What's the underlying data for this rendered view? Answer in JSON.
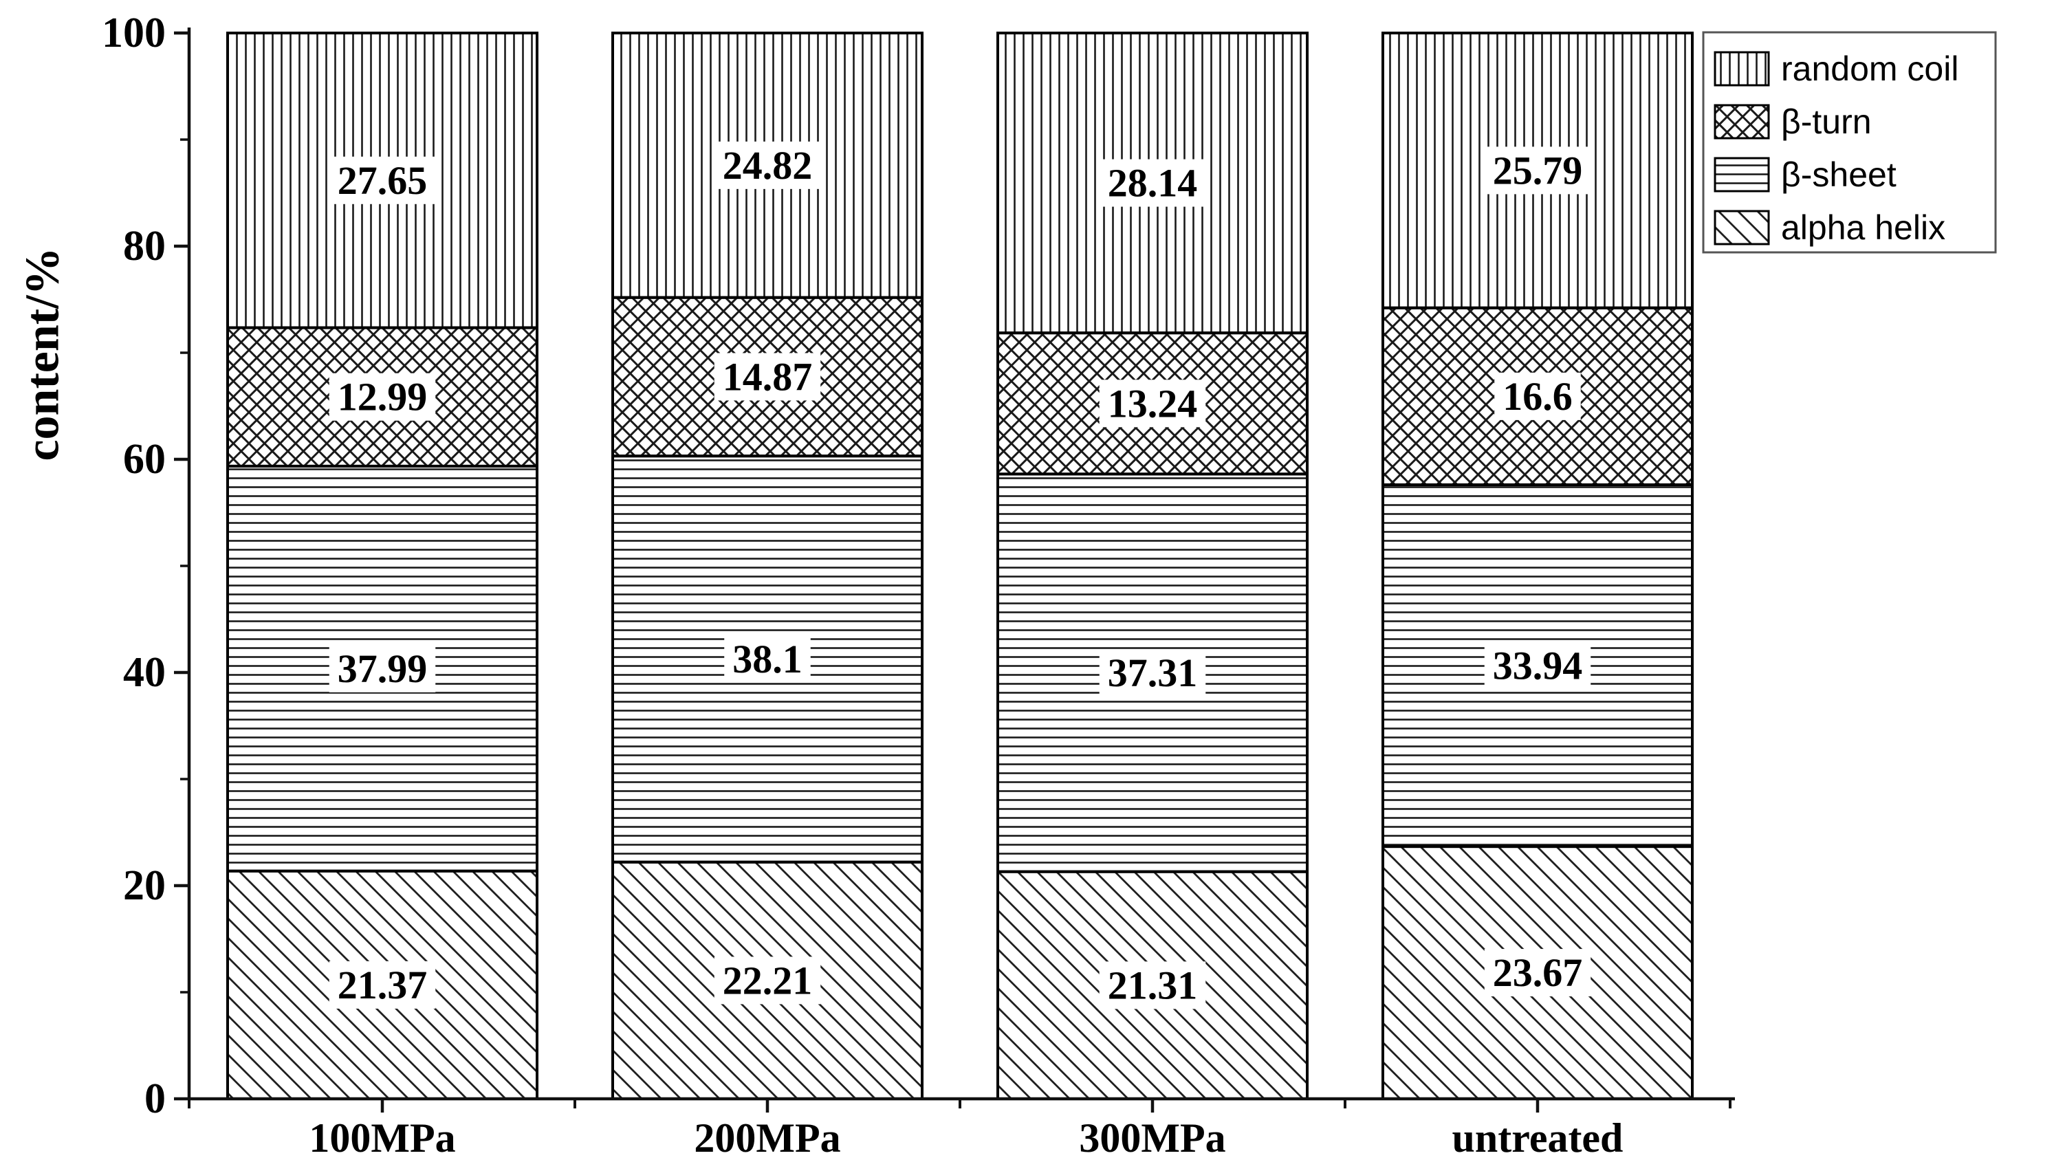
{
  "chart_data": {
    "type": "bar",
    "stacked": true,
    "title": "",
    "xlabel": "",
    "ylabel": "content/%",
    "ylim": [
      0,
      100
    ],
    "yticks": [
      "0",
      "20",
      "40",
      "60",
      "80",
      "100"
    ],
    "yticks_minor": [
      10,
      30,
      50,
      70,
      90
    ],
    "grid": false,
    "legend_position": "top-right",
    "categories": [
      "100MPa",
      "200MPa",
      "300MPa",
      "untreated"
    ],
    "series": [
      {
        "name": "alpha helix",
        "pattern": "diagonal",
        "values": [
          21.37,
          22.21,
          21.31,
          23.67
        ]
      },
      {
        "name": "β-sheet",
        "pattern": "horizontal",
        "values": [
          37.99,
          38.1,
          37.31,
          33.94
        ]
      },
      {
        "name": "β-turn",
        "pattern": "crosshatch",
        "values": [
          12.99,
          14.87,
          13.24,
          16.6
        ]
      },
      {
        "name": "random coil",
        "pattern": "vertical",
        "values": [
          27.65,
          24.82,
          28.14,
          25.79
        ]
      }
    ],
    "legend": [
      {
        "label": "random coil",
        "pattern": "vertical"
      },
      {
        "label": "β-turn",
        "pattern": "crosshatch"
      },
      {
        "label": "β-sheet",
        "pattern": "horizontal"
      },
      {
        "label": "alpha helix",
        "pattern": "diagonal"
      }
    ],
    "colors": {
      "foreground": "#000000",
      "background": "#ffffff",
      "hatch": "#1a1a1a",
      "legend_border": "#555555"
    }
  }
}
